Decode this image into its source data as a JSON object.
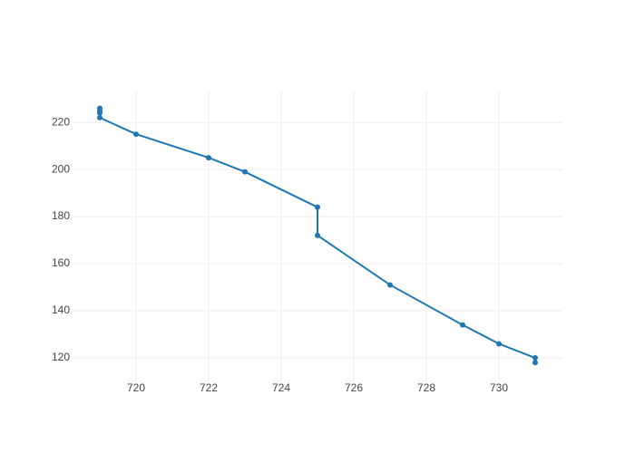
{
  "chart_data": {
    "type": "line",
    "x": [
      719,
      719,
      719,
      719,
      720,
      722,
      723,
      725,
      725,
      727,
      729,
      730,
      731,
      731
    ],
    "series": [
      {
        "color": "#1f77b4",
        "values": [
          226,
          225,
          224,
          222,
          215,
          205,
          199,
          184,
          172,
          151,
          134,
          126,
          120,
          118
        ]
      }
    ],
    "xlim": [
      718.25,
      731.75
    ],
    "xticks": [
      720,
      722,
      724,
      726,
      728,
      730
    ],
    "ylim": [
      110.4,
      233.5
    ],
    "yticks": [
      120,
      140,
      160,
      180,
      200,
      220
    ],
    "grid": true
  }
}
